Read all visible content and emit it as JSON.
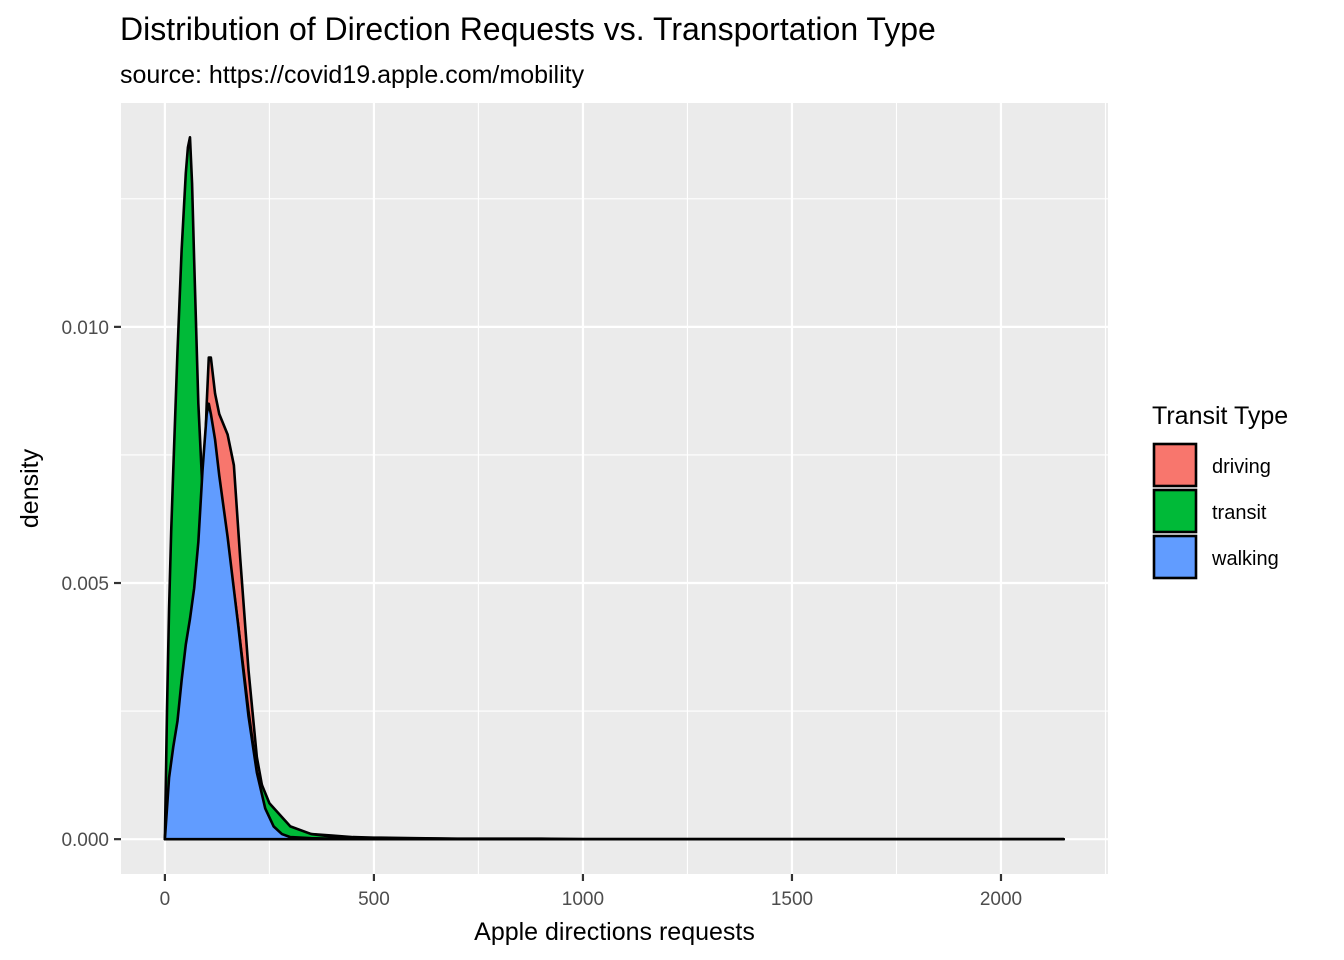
{
  "chart_data": {
    "type": "area",
    "title": "Distribution of Direction Requests vs. Transportation Type",
    "subtitle": "source: https://covid19.apple.com/mobility",
    "xlabel": "Apple directions requests",
    "ylabel": "density",
    "xlim": [
      -105,
      2256
    ],
    "ylim": [
      -0.00068,
      0.01437
    ],
    "x_ticks": [
      0,
      500,
      1000,
      1500,
      2000
    ],
    "x_tick_labels": [
      "0",
      "500",
      "1000",
      "1500",
      "2000"
    ],
    "y_ticks": [
      0.0,
      0.005,
      0.01
    ],
    "y_tick_labels": [
      "0.000",
      "0.005",
      "0.010"
    ],
    "grid": true,
    "legend": {
      "title": "Transit Type",
      "position": "right",
      "entries": [
        "driving",
        "transit",
        "walking"
      ]
    },
    "colors": {
      "driving": "#F8766D",
      "transit": "#00BA38",
      "walking": "#619CFF",
      "panel": "#EBEBEB",
      "grid": "#FFFFFF",
      "outline": "#000000"
    },
    "series": [
      {
        "name": "driving",
        "x": [
          0,
          10,
          30,
          50,
          70,
          90,
          100,
          105,
          110,
          120,
          130,
          150,
          165,
          180,
          200,
          220,
          240,
          260,
          280,
          300,
          325,
          350,
          400,
          450,
          500,
          600,
          700,
          800,
          900,
          1000,
          1250,
          1500,
          1750,
          2000,
          2150
        ],
        "y": [
          0.0,
          0.0012,
          0.0025,
          0.0037,
          0.0048,
          0.0062,
          0.0085,
          0.0094,
          0.0094,
          0.0087,
          0.0083,
          0.0079,
          0.0073,
          0.0055,
          0.0033,
          0.0016,
          0.0007,
          0.00045,
          0.0003,
          0.0002,
          0.00015,
          0.0001,
          7e-05,
          4e-05,
          3e-05,
          2e-05,
          1e-05,
          1e-05,
          1e-05,
          0.0,
          0.0,
          0.0,
          0.0,
          0.0,
          0.0
        ]
      },
      {
        "name": "transit",
        "x": [
          0,
          5,
          10,
          15,
          20,
          30,
          40,
          50,
          55,
          60,
          65,
          70,
          80,
          90,
          95,
          100,
          110,
          130,
          150,
          175,
          200,
          220,
          250,
          300,
          350,
          400,
          500,
          650,
          800,
          1000,
          1500,
          2000,
          2150
        ],
        "y": [
          0.0,
          0.0025,
          0.0045,
          0.006,
          0.0072,
          0.0095,
          0.0115,
          0.013,
          0.0135,
          0.0137,
          0.0128,
          0.0113,
          0.0085,
          0.0068,
          0.0066,
          0.0071,
          0.0078,
          0.007,
          0.0058,
          0.0042,
          0.0025,
          0.0013,
          0.0007,
          0.00025,
          0.0001,
          5e-05,
          2e-05,
          1e-05,
          0.0,
          0.0,
          0.0,
          0.0,
          0.0
        ]
      },
      {
        "name": "walking",
        "x": [
          0,
          10,
          20,
          30,
          40,
          50,
          60,
          70,
          80,
          90,
          100,
          105,
          110,
          120,
          130,
          150,
          175,
          200,
          220,
          240,
          260,
          280,
          300,
          350,
          400,
          500,
          650,
          800,
          1000,
          1500,
          2000,
          2150
        ],
        "y": [
          0.0,
          0.0012,
          0.0018,
          0.0023,
          0.0031,
          0.0038,
          0.0043,
          0.0049,
          0.0058,
          0.0072,
          0.0083,
          0.0085,
          0.0083,
          0.0078,
          0.0071,
          0.0059,
          0.0042,
          0.0024,
          0.0013,
          0.0006,
          0.00025,
          0.0001,
          4e-05,
          2e-05,
          1e-05,
          0.0,
          0.0,
          0.0,
          0.0,
          0.0,
          0.0,
          0.0
        ]
      }
    ]
  }
}
